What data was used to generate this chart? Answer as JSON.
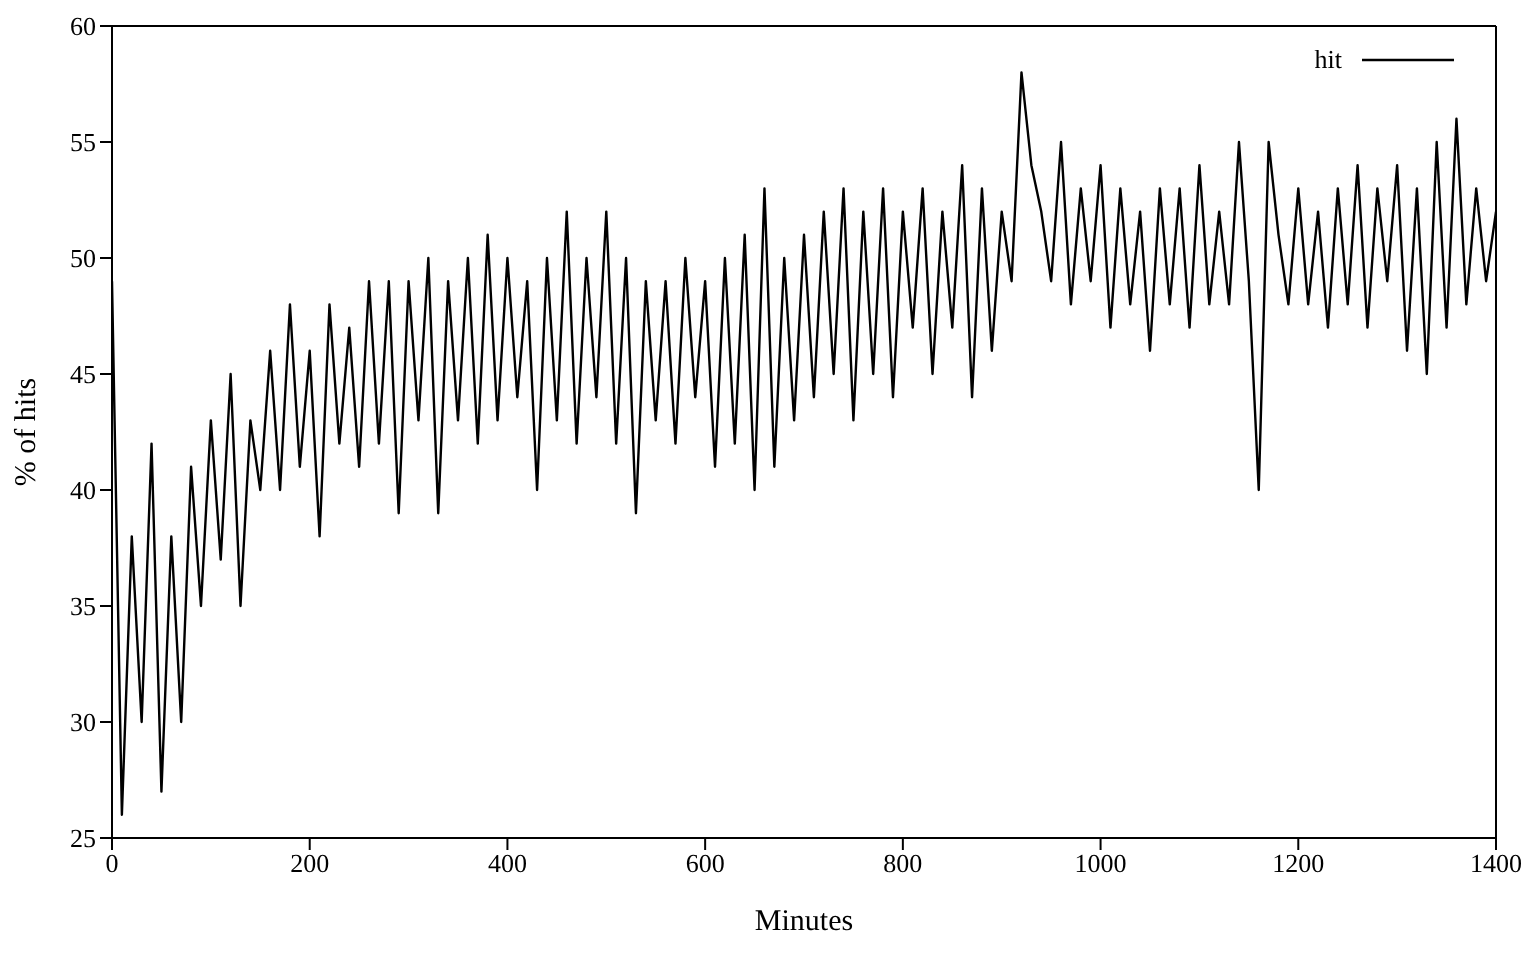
{
  "chart_data": {
    "type": "line",
    "xlabel": "Minutes",
    "ylabel": "% of hits",
    "x": [
      0,
      10,
      20,
      30,
      40,
      50,
      60,
      70,
      80,
      90,
      100,
      110,
      120,
      130,
      140,
      150,
      160,
      170,
      180,
      190,
      200,
      210,
      220,
      230,
      240,
      250,
      260,
      270,
      280,
      290,
      300,
      310,
      320,
      330,
      340,
      350,
      360,
      370,
      380,
      390,
      400,
      410,
      420,
      430,
      440,
      450,
      460,
      470,
      480,
      490,
      500,
      510,
      520,
      530,
      540,
      550,
      560,
      570,
      580,
      590,
      600,
      610,
      620,
      630,
      640,
      650,
      660,
      670,
      680,
      690,
      700,
      710,
      720,
      730,
      740,
      750,
      760,
      770,
      780,
      790,
      800,
      810,
      820,
      830,
      840,
      850,
      860,
      870,
      880,
      890,
      900,
      910,
      920,
      930,
      940,
      950,
      960,
      970,
      980,
      990,
      1000,
      1010,
      1020,
      1030,
      1040,
      1050,
      1060,
      1070,
      1080,
      1090,
      1100,
      1110,
      1120,
      1130,
      1140,
      1150,
      1160,
      1170,
      1180,
      1190,
      1200,
      1210,
      1220,
      1230,
      1240,
      1250,
      1260,
      1270,
      1280,
      1290,
      1300,
      1310,
      1320,
      1330,
      1340,
      1350,
      1360,
      1370,
      1380,
      1390,
      1400
    ],
    "series": [
      {
        "name": "hit",
        "color": "#000000",
        "values": [
          49,
          26,
          38,
          30,
          42,
          27,
          38,
          30,
          41,
          35,
          43,
          37,
          45,
          35,
          43,
          40,
          46,
          40,
          48,
          41,
          46,
          38,
          48,
          42,
          47,
          41,
          49,
          42,
          49,
          39,
          49,
          43,
          50,
          39,
          49,
          43,
          50,
          42,
          51,
          43,
          50,
          44,
          49,
          40,
          50,
          43,
          52,
          42,
          50,
          44,
          52,
          42,
          50,
          39,
          49,
          43,
          49,
          42,
          50,
          44,
          49,
          41,
          50,
          42,
          51,
          40,
          53,
          41,
          50,
          43,
          51,
          44,
          52,
          45,
          53,
          43,
          52,
          45,
          53,
          44,
          52,
          47,
          53,
          45,
          52,
          47,
          54,
          44,
          53,
          46,
          52,
          49,
          58,
          54,
          52,
          49,
          55,
          48,
          53,
          49,
          54,
          47,
          53,
          48,
          52,
          46,
          53,
          48,
          53,
          47,
          54,
          48,
          52,
          48,
          55,
          49,
          40,
          55,
          51,
          48,
          53,
          48,
          52,
          47,
          53,
          48,
          54,
          47,
          53,
          49,
          54,
          46,
          53,
          45,
          55,
          47,
          56,
          48,
          53,
          49,
          52
        ]
      }
    ],
    "xlim": [
      0,
      1400
    ],
    "xticks": [
      0,
      200,
      400,
      600,
      800,
      1000,
      1200,
      1400
    ],
    "ylim": [
      25,
      60
    ],
    "yticks": [
      25,
      30,
      35,
      40,
      45,
      50,
      55,
      60
    ],
    "grid": false,
    "legend": "top right",
    "marker": "none",
    "line_style": "solid"
  }
}
